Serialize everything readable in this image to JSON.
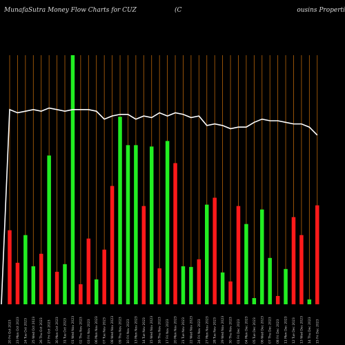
{
  "header": {
    "title_left": "MunafaSutra  Money Flow  Charts for CUZ",
    "title_paren": "(C",
    "title_right": "ousins Properti"
  },
  "colors": {
    "background": "#000000",
    "grid": "#b8650a",
    "up": "#22ee22",
    "down": "#ff1a1a",
    "price_line": "#ffffff",
    "text": "#dddddd"
  },
  "chart_data": {
    "type": "bar",
    "title": "MunafaSutra  Money Flow  Charts for CUZ",
    "grid": true,
    "categories": [
      "20 Fri Oct 2023",
      "23 Mon Oct 2023",
      "24 Tue Oct 2023",
      "25 Wed Oct 2023",
      "26 Thu Oct 2023",
      "27 Fri Oct 2023",
      "30 Mon Oct 2023",
      "31 Tue Oct 2023",
      "01 Wed Nov 2023",
      "02 Thu Nov 2023",
      "03 Fri Nov 2023",
      "06 Mon Nov 2023",
      "07 Tue Nov 2023",
      "08 Wed Nov 2023",
      "09 Thu Nov 2023",
      "10 Fri Nov 2023",
      "13 Mon Nov 2023",
      "14 Tue Nov 2023",
      "15 Wed Nov 2023",
      "16 Thu Nov 2023",
      "17 Fri Nov 2023",
      "20 Mon Nov 2023",
      "21 Tue Nov 2023",
      "22 Wed Nov 2023",
      "24 Fri Nov 2023",
      "27 Mon Nov 2023",
      "28 Tue Nov 2023",
      "29 Wed Nov 2023",
      "30 Thu Nov 2023",
      "01 Fri Dec 2023",
      "04 Mon Dec 2023",
      "05 Tue Dec 2023",
      "06 Wed Dec 2023",
      "07 Thu Dec 2023",
      "08 Fri Dec 2023",
      "11 Mon Dec 2023",
      "12 Tue Dec 2023",
      "13 Wed Dec 2023",
      "14 Thu Dec 2023",
      "15 Fri Dec 2023"
    ],
    "x_tick_labels": [
      "20 Fri Oct 2023",
      "23 Mon Oct 2023",
      "24 Tue Oct 2023",
      "25 Wed Oct 2023",
      "26 Thu Oct 2023",
      "27 Fri Oct 2023",
      "30 Mon Oct 2023",
      "31 Tue Oct 2023",
      "01 Wed Nov 2023",
      "02 Thu Nov 2023",
      "03 Fri Nov 2023",
      "06 Mon Nov 2023",
      "07 Tue Nov 2023",
      "08 Wed Nov 2023",
      "09 Thu Nov 2023",
      "10 Fri Nov 2023",
      "13 Mon Nov 2023",
      "14 Tue Nov 2023",
      "15 Wed Nov 2023",
      "16 Thu Nov 2023",
      "17 Fri Nov 2023",
      "20 Mon Nov 2023",
      "21 Tue Nov 2023",
      "22 Wed Nov 2023",
      "24 Fri Nov 2023",
      "27 Mon Nov 2023",
      "28 Tue Nov 2023",
      "29 Wed Nov 2023",
      "30 Thu Nov 2023",
      "01 Fri Dec 2023",
      "04 Mon Dec 2023",
      "05 Tue Dec 2023",
      "06 Wed Dec 2023",
      "07 Thu Dec 2023",
      "08 Fri Dec 2023",
      "11 Mon Dec 2023",
      "12 Tue Dec 2023",
      "13 Wed Dec 2023",
      "14 Thu Dec 2023",
      "15 Fri Dec 2023"
    ],
    "series": [
      {
        "values": [
          107,
          60,
          100,
          55,
          73,
          215,
          47,
          58,
          360,
          29,
          95,
          36,
          79,
          171,
          271,
          230,
          230,
          142,
          228,
          52,
          236,
          204,
          55,
          54,
          65,
          144,
          154,
          46,
          33,
          142,
          116,
          9,
          137,
          67,
          12,
          51,
          126,
          100,
          7,
          143
        ],
        "direction": [
          "down",
          "down",
          "up",
          "up",
          "down",
          "up",
          "down",
          "up",
          "up",
          "down",
          "down",
          "up",
          "down",
          "down",
          "up",
          "up",
          "up",
          "down",
          "up",
          "down",
          "up",
          "down",
          "up",
          "up",
          "down",
          "up",
          "down",
          "up",
          "down",
          "down",
          "up",
          "up",
          "up",
          "up",
          "down",
          "up",
          "down",
          "down",
          "up",
          "down"
        ]
      },
      {
        "price": [
          12.5,
          12.4,
          12.45,
          12.5,
          12.45,
          12.55,
          12.5,
          12.45,
          12.5,
          12.5,
          12.5,
          12.45,
          12.2,
          12.3,
          12.35,
          12.35,
          12.2,
          12.3,
          12.25,
          12.4,
          12.3,
          12.4,
          12.35,
          12.25,
          12.3,
          12.0,
          12.05,
          12.0,
          11.9,
          11.95,
          11.95,
          12.1,
          12.2,
          12.15,
          12.15,
          12.1,
          12.05,
          12.05,
          11.95,
          11.7
        ],
        "start_value": 0.0
      }
    ],
    "ylim": [
      0,
      360
    ]
  }
}
